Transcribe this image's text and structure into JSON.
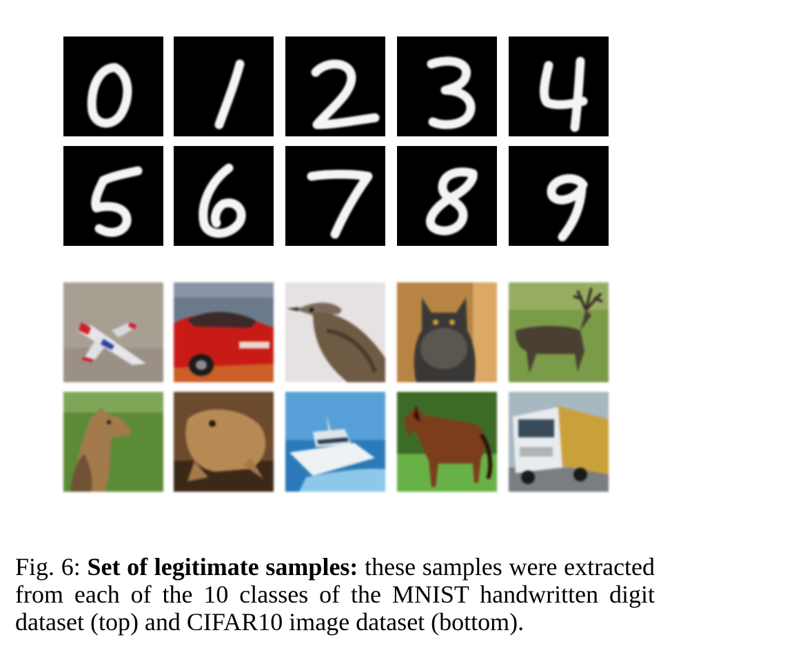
{
  "mnist": {
    "digits": [
      "0",
      "1",
      "2",
      "3",
      "4",
      "5",
      "6",
      "7",
      "8",
      "9"
    ]
  },
  "cifar": {
    "classes": [
      "airplane",
      "automobile",
      "bird",
      "cat",
      "deer",
      "dog",
      "frog",
      "ship",
      "horse",
      "truck"
    ]
  },
  "caption": {
    "label": "Fig. 6:",
    "title": "Set of legitimate samples:",
    "body": "these samples were extracted from each of the 10 classes of the MNIST handwritten digit dataset (top) and CIFAR10 image dataset (bottom)."
  },
  "colors": {
    "digit_background": "#000000",
    "digit_stroke": "#f4f4f4"
  }
}
